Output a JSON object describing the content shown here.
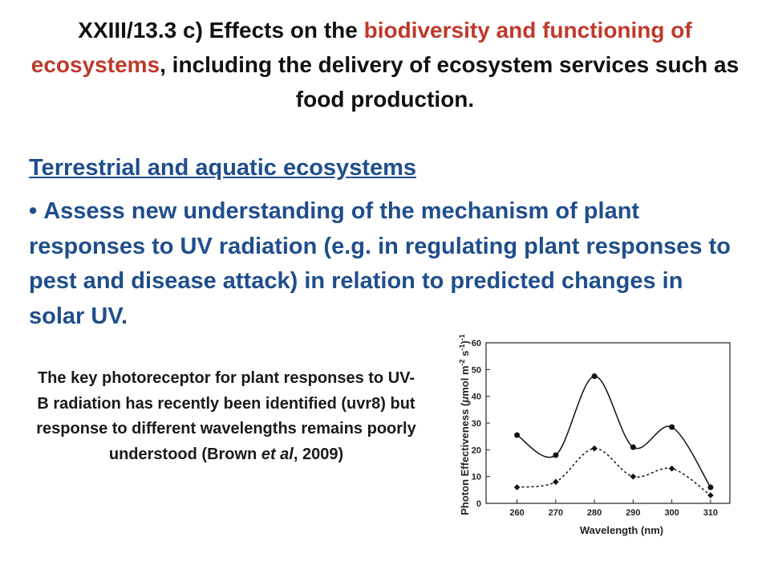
{
  "slide": {
    "title_p1": "XXIII/13.3 c) Effects on the ",
    "title_red": "biodiversity and functioning of ecosystems",
    "title_p2": ", including the delivery of ecosystem services such as food production.",
    "subheading": "Terrestrial and aquatic ecosystems",
    "bullet_text": "Assess new understanding of the mechanism of plant responses to UV radiation (e.g. in regulating plant responses to pest and disease attack) in relation to predicted changes in solar UV.",
    "caption_p1": "The key photoreceptor for plant responses to UV-B radiation has recently been identified (uvr8) but response to different wavelengths remains poorly understood (Brown ",
    "caption_italic": "et al",
    "caption_p2": ", 2009)"
  },
  "colors": {
    "title": "#111111",
    "highlight": "#c0392b",
    "body_blue": "#1f4e8c"
  },
  "chart_data": {
    "type": "line",
    "xlabel": "Wavelength (nm)",
    "ylabel_pre": "Photon Effectiveness (",
    "ylabel_mu": "μ",
    "ylabel_mid": "mol m",
    "ylabel_sup1": "-2",
    "ylabel_mid2": " s",
    "ylabel_sup2": "-1",
    "ylabel_post": ")",
    "ylabel_sup3": "-1",
    "x": [
      260,
      270,
      280,
      290,
      300,
      310
    ],
    "xticks": [
      "260",
      "270",
      "280",
      "290",
      "300",
      "310"
    ],
    "yticks": [
      "0",
      "10",
      "20",
      "30",
      "40",
      "50",
      "60"
    ],
    "xlim": [
      252,
      315
    ],
    "ylim": [
      0,
      60
    ],
    "grid": false,
    "series": [
      {
        "style": "solid",
        "marker": "circle",
        "values": [
          25.5,
          18,
          47.5,
          21,
          28.5,
          6
        ]
      },
      {
        "style": "dotted",
        "marker": "diamond",
        "values": [
          6,
          8,
          20.5,
          10,
          13,
          3
        ]
      }
    ]
  }
}
